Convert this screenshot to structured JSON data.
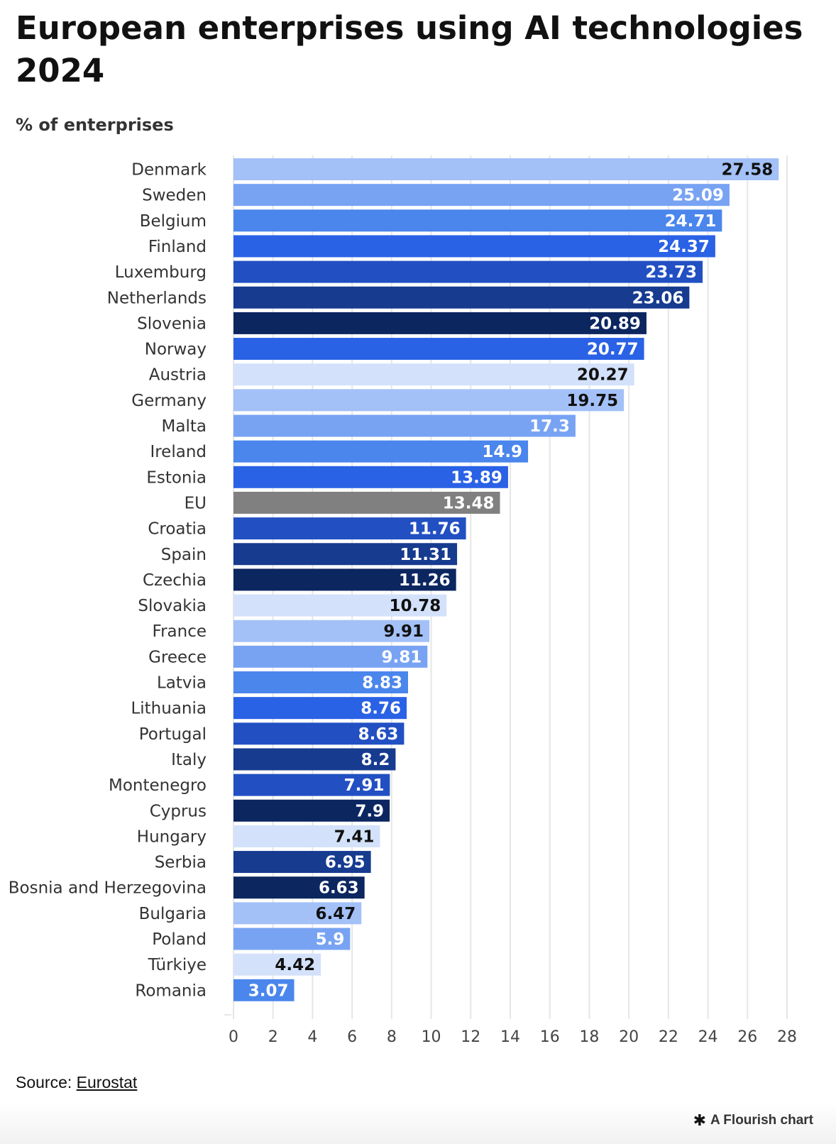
{
  "header": {
    "title": "European enterprises using AI technologies 2024",
    "subtitle": "% of enterprises"
  },
  "footer": {
    "source_label": "Source: ",
    "source_link": "Eurostat",
    "credit_icon": "flourish-asterisk-icon",
    "credit": "A Flourish chart"
  },
  "colors": {
    "palette": [
      "#a3c1f7",
      "#78a3f3",
      "#4a86ec",
      "#2a62e6",
      "#2250c3",
      "#163b8f",
      "#0c2660",
      "#d3e1fb",
      "#808080"
    ],
    "dark_text": "#111111",
    "light_text": "#ffffff",
    "grid": "#e6e6e6"
  },
  "chart_data": {
    "type": "bar",
    "orientation": "horizontal",
    "title": "European enterprises using AI technologies 2024",
    "subtitle": "% of enterprises",
    "xlabel": "",
    "ylabel": "",
    "xlim": [
      0,
      28
    ],
    "x_ticks": [
      0,
      2,
      4,
      6,
      8,
      10,
      12,
      14,
      16,
      18,
      20,
      22,
      24,
      26,
      28
    ],
    "grid": "vertical",
    "legend": "none",
    "categories": [
      "Denmark",
      "Sweden",
      "Belgium",
      "Finland",
      "Luxemburg",
      "Netherlands",
      "Slovenia",
      "Norway",
      "Austria",
      "Germany",
      "Malta",
      "Ireland",
      "Estonia",
      "EU",
      "Croatia",
      "Spain",
      "Czechia",
      "Slovakia",
      "France",
      "Greece",
      "Latvia",
      "Lithuania",
      "Portugal",
      "Italy",
      "Montenegro",
      "Cyprus",
      "Hungary",
      "Serbia",
      "Bosnia and Herzegovina",
      "Bulgaria",
      "Poland",
      "Türkiye",
      "Romania"
    ],
    "values": [
      27.58,
      25.09,
      24.71,
      24.37,
      23.73,
      23.06,
      20.89,
      20.77,
      20.27,
      19.75,
      17.3,
      14.9,
      13.89,
      13.48,
      11.76,
      11.31,
      11.26,
      10.78,
      9.91,
      9.81,
      8.83,
      8.76,
      8.63,
      8.2,
      7.91,
      7.9,
      7.41,
      6.95,
      6.63,
      6.47,
      5.9,
      4.42,
      3.07
    ],
    "bar_colors": [
      "#a3c1f7",
      "#78a3f3",
      "#4a86ec",
      "#2a62e6",
      "#2250c3",
      "#163b8f",
      "#0c2660",
      "#2a62e6",
      "#d3e1fb",
      "#a3c1f7",
      "#78a3f3",
      "#4a86ec",
      "#2a62e6",
      "#808080",
      "#2250c3",
      "#163b8f",
      "#0c2660",
      "#d3e1fb",
      "#a3c1f7",
      "#78a3f3",
      "#4a86ec",
      "#2a62e6",
      "#2250c3",
      "#163b8f",
      "#2250c3",
      "#0c2660",
      "#d3e1fb",
      "#163b8f",
      "#0c2660",
      "#a3c1f7",
      "#78a3f3",
      "#d3e1fb",
      "#4a86ec"
    ],
    "label_dark": [
      true,
      false,
      false,
      false,
      false,
      false,
      false,
      false,
      true,
      true,
      false,
      false,
      false,
      false,
      false,
      false,
      false,
      true,
      true,
      false,
      false,
      false,
      false,
      false,
      false,
      false,
      true,
      false,
      false,
      true,
      false,
      true,
      false
    ]
  }
}
